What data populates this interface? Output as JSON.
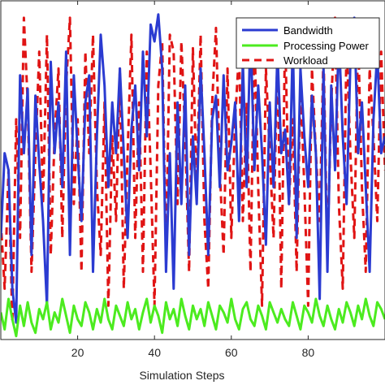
{
  "chart_data": {
    "type": "line",
    "title": "",
    "xlabel": "Simulation Steps",
    "ylabel": "",
    "xlim": [
      0,
      100
    ],
    "ylim": [
      0,
      1
    ],
    "xticks": [
      20,
      40,
      60,
      80
    ],
    "x": [
      0,
      1,
      2,
      3,
      4,
      5,
      6,
      7,
      8,
      9,
      10,
      11,
      12,
      13,
      14,
      15,
      16,
      17,
      18,
      19,
      20,
      21,
      22,
      23,
      24,
      25,
      26,
      27,
      28,
      29,
      30,
      31,
      32,
      33,
      34,
      35,
      36,
      37,
      38,
      39,
      40,
      41,
      42,
      43,
      44,
      45,
      46,
      47,
      48,
      49,
      50,
      51,
      52,
      53,
      54,
      55,
      56,
      57,
      58,
      59,
      60,
      61,
      62,
      63,
      64,
      65,
      66,
      67,
      68,
      69,
      70,
      71,
      72,
      73,
      74,
      75,
      76,
      77,
      78,
      79,
      80,
      81,
      82,
      83,
      84,
      85,
      86,
      87,
      88,
      89,
      90,
      91,
      92,
      93,
      94,
      95,
      96,
      97,
      98,
      99,
      100
    ],
    "legend": {
      "location": "top-right"
    },
    "series": [
      {
        "name": "Bandwidth",
        "color": "#2B3BD1",
        "style": "solid",
        "values": [
          0.3,
          0.55,
          0.5,
          0.15,
          0.05,
          0.78,
          0.55,
          0.74,
          0.25,
          0.72,
          0.52,
          0.35,
          0.1,
          0.82,
          0.55,
          0.7,
          0.45,
          0.85,
          0.25,
          0.78,
          0.55,
          0.35,
          0.7,
          0.78,
          0.2,
          0.6,
          0.9,
          0.75,
          0.45,
          0.7,
          0.55,
          0.8,
          0.55,
          0.3,
          0.62,
          0.75,
          0.5,
          0.85,
          0.6,
          0.93,
          0.88,
          0.96,
          0.8,
          0.2,
          0.55,
          0.15,
          0.7,
          0.4,
          0.75,
          0.25,
          0.6,
          0.4,
          0.8,
          0.55,
          0.25,
          0.65,
          0.72,
          0.45,
          0.78,
          0.5,
          0.58,
          0.7,
          0.35,
          0.82,
          0.45,
          0.92,
          0.5,
          0.75,
          0.55,
          0.28,
          0.7,
          0.45,
          0.85,
          0.55,
          0.62,
          0.4,
          0.88,
          0.3,
          0.8,
          0.6,
          0.45,
          0.72,
          0.55,
          0.12,
          0.8,
          0.2,
          0.75,
          0.5,
          0.9,
          0.6,
          0.4,
          0.82,
          0.95,
          0.55,
          0.7,
          0.45,
          0.2,
          0.65,
          0.85,
          0.55,
          0.6
        ]
      },
      {
        "name": "Processing Power",
        "color": "#4CEB1F",
        "style": "solid",
        "values": [
          0.08,
          0.03,
          0.12,
          0.06,
          0.01,
          0.1,
          0.04,
          0.11,
          0.05,
          0.02,
          0.09,
          0.06,
          0.11,
          0.03,
          0.08,
          0.05,
          0.12,
          0.07,
          0.02,
          0.1,
          0.06,
          0.04,
          0.11,
          0.08,
          0.03,
          0.09,
          0.05,
          0.12,
          0.06,
          0.03,
          0.1,
          0.07,
          0.04,
          0.11,
          0.06,
          0.09,
          0.03,
          0.08,
          0.12,
          0.05,
          0.1,
          0.07,
          0.02,
          0.11,
          0.06,
          0.09,
          0.04,
          0.12,
          0.07,
          0.03,
          0.1,
          0.06,
          0.09,
          0.04,
          0.11,
          0.07,
          0.03,
          0.1,
          0.08,
          0.05,
          0.12,
          0.06,
          0.03,
          0.09,
          0.11,
          0.06,
          0.04,
          0.1,
          0.07,
          0.03,
          0.11,
          0.08,
          0.05,
          0.09,
          0.06,
          0.04,
          0.11,
          0.07,
          0.03,
          0.1,
          0.08,
          0.05,
          0.12,
          0.07,
          0.04,
          0.1,
          0.06,
          0.03,
          0.09,
          0.05,
          0.11,
          0.08,
          0.04,
          0.1,
          0.06,
          0.12,
          0.07,
          0.04,
          0.11,
          0.09,
          0.06
        ]
      },
      {
        "name": "Workload",
        "color": "#E01414",
        "style": "dashed",
        "values": [
          0.35,
          0.15,
          0.5,
          0.05,
          0.65,
          0.3,
          0.95,
          0.7,
          0.2,
          0.55,
          0.85,
          0.4,
          0.9,
          0.25,
          0.6,
          0.8,
          0.3,
          0.75,
          0.95,
          0.4,
          0.65,
          0.2,
          0.85,
          0.55,
          0.9,
          0.45,
          0.25,
          0.7,
          0.1,
          0.6,
          0.35,
          0.8,
          0.15,
          0.55,
          0.9,
          0.3,
          0.7,
          0.2,
          0.85,
          0.5,
          0.1,
          0.75,
          0.88,
          0.25,
          0.9,
          0.85,
          0.4,
          0.88,
          0.6,
          0.2,
          0.86,
          0.45,
          0.9,
          0.35,
          0.15,
          0.7,
          0.92,
          0.5,
          0.25,
          0.8,
          0.3,
          0.65,
          0.85,
          0.35,
          0.7,
          0.2,
          0.9,
          0.45,
          0.1,
          0.8,
          0.55,
          0.3,
          0.85,
          0.15,
          0.9,
          0.4,
          0.65,
          0.2,
          0.75,
          0.45,
          0.1,
          0.8,
          0.55,
          0.35,
          0.85,
          0.25,
          0.7,
          0.95,
          0.4,
          0.15,
          0.88,
          0.55,
          0.3,
          0.9,
          0.45,
          0.2,
          0.8,
          0.6,
          0.35,
          0.85,
          0.5
        ]
      }
    ]
  }
}
